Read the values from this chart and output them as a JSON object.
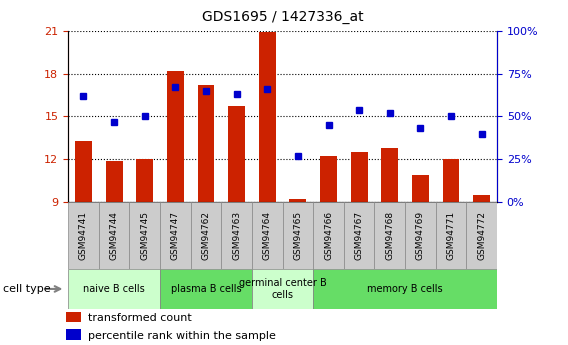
{
  "title": "GDS1695 / 1427336_at",
  "samples": [
    "GSM94741",
    "GSM94744",
    "GSM94745",
    "GSM94747",
    "GSM94762",
    "GSM94763",
    "GSM94764",
    "GSM94765",
    "GSM94766",
    "GSM94767",
    "GSM94768",
    "GSM94769",
    "GSM94771",
    "GSM94772"
  ],
  "bar_values": [
    13.3,
    11.9,
    12.0,
    18.2,
    17.2,
    15.7,
    20.9,
    9.2,
    12.2,
    12.5,
    12.8,
    10.9,
    12.0,
    9.5
  ],
  "dot_values": [
    62,
    47,
    50,
    67,
    65,
    63,
    66,
    27,
    45,
    54,
    52,
    43,
    50,
    40
  ],
  "ylim_left": [
    9,
    21
  ],
  "ylim_right": [
    0,
    100
  ],
  "yticks_left": [
    9,
    12,
    15,
    18,
    21
  ],
  "yticks_right": [
    0,
    25,
    50,
    75,
    100
  ],
  "bar_color": "#cc2200",
  "dot_color": "#0000cc",
  "groups": [
    {
      "label": "naive B cells",
      "start": 0,
      "end": 3,
      "color": "#ccffcc"
    },
    {
      "label": "plasma B cells",
      "start": 3,
      "end": 6,
      "color": "#66dd66"
    },
    {
      "label": "germinal center B\ncells",
      "start": 6,
      "end": 8,
      "color": "#ccffcc"
    },
    {
      "label": "memory B cells",
      "start": 8,
      "end": 14,
      "color": "#66dd66"
    }
  ],
  "cell_type_label": "cell type",
  "legend_bar_label": "transformed count",
  "legend_dot_label": "percentile rank within the sample",
  "tick_label_color_left": "#cc2200",
  "tick_label_color_right": "#0000cc",
  "sample_bg_color": "#cccccc",
  "sample_border_color": "#888888"
}
